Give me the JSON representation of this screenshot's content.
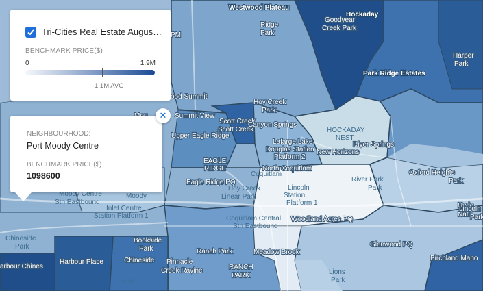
{
  "legend": {
    "layer_checked": true,
    "layer_title": "Tri-Cities Real Estate Augus…",
    "heading": "BENCHMARK PRICE($)",
    "min_label": "0",
    "max_label": "1.9M",
    "avg_label": "1.1M AVG",
    "gradient_colors": [
      "#f5f8fc",
      "#1b4b95"
    ]
  },
  "popup": {
    "neighbourhood_label": "NEIGHBOURHOOD:",
    "neighbourhood_value": "Port Moody Centre",
    "price_label": "BENCHMARK PRICE($)",
    "price_value": "1098600",
    "close_icon": "close-icon"
  },
  "map_labels": {
    "westwood_plateau": "Westwood Plateau",
    "hockaday": "Hockaday",
    "goodyear_1": "Goodyear",
    "goodyear_2": "Creek Park",
    "ridge_1": "Ridge",
    "ridge_2": "Park",
    "harper_1": "Harper",
    "harper_2": "Park",
    "park_ridge_estates": "Park Ridge Estates",
    "pm": "PM",
    "wood_summit": "ood Summit",
    "hoy_creek_1": "Hoy Creek",
    "hoy_creek_2": "Park",
    "summit_view": "Summit View",
    "mountain": "Mou",
    "scott_creek_1": "Scott Creek",
    "scott_creek_2": "Scott Creek",
    "canyon_springs": "Canyon Springs",
    "hockaday_nest_1": "HOCKADAY",
    "hockaday_nest_2": "NEST",
    "river_springs": "River Springs",
    "upper_eagle_ridge": "Upper Eagle Ridge",
    "lafarge_1": "Lafarge Lake",
    "lafarge_2": "Douglas Station",
    "lafarge_3": "Platform 2",
    "new_horizons": "New Horizons",
    "eagle_ridge_1": "EAGLE",
    "eagle_ridge_2": "RIDGE",
    "north_coquitlam": "North Coquitlam",
    "coquitlam_frag": "Coquitlam",
    "river_park_1": "River Park",
    "river_park_2": "Park",
    "oxford_heights_1": "Oxford Heights",
    "oxford_heights_2": "Park",
    "eagle_ridge_pq": "Eagle Ridge PQ",
    "hoy_creek_linear_1": "Hoy Creek",
    "hoy_creek_linear_2": "Linear Park",
    "lincoln_1": "Lincoln",
    "lincoln_2": "Station",
    "lincoln_3": "Platform 1",
    "moody": "Moody",
    "moody_centre_1": "Moody Centre",
    "moody_centre_2": "Stn Eastbound",
    "inlet_centre_1": "Inlet Centre",
    "inlet_centre_2": "Station Platform 1",
    "coquitlam_central_1": "Coquitlam Central",
    "coquitlam_central_2": "Stn Eastbound",
    "woodland_acres": "Woodland Acres PQ",
    "hyde_1": "Hyde",
    "hyde_2": "Natu",
    "lincoln_right": "Lincoln",
    "park_right": "Park",
    "chineside_1": "Chineside",
    "chineside_2": "Park",
    "bookside_1": "Bookside",
    "bookside_2": "Park",
    "ranch_park": "Ranch Park",
    "glenwood_pq": "Glenwood PQ",
    "harbour_chines": "arbour Chines",
    "harbour_place": "Harbour Place",
    "chineside": "Chineside",
    "pinnacle_1": "Pinnacle",
    "pinnacle_2": "Creek Ravine",
    "meadow_brook": "Meadow Brook",
    "ranch_park_2": "RANCH",
    "ranch_park_3": "PARK",
    "lions_1": "Lions",
    "lions_2": "Park",
    "birchland_manor": "Birchland Mano",
    "kitchen_frag": "Kite"
  }
}
